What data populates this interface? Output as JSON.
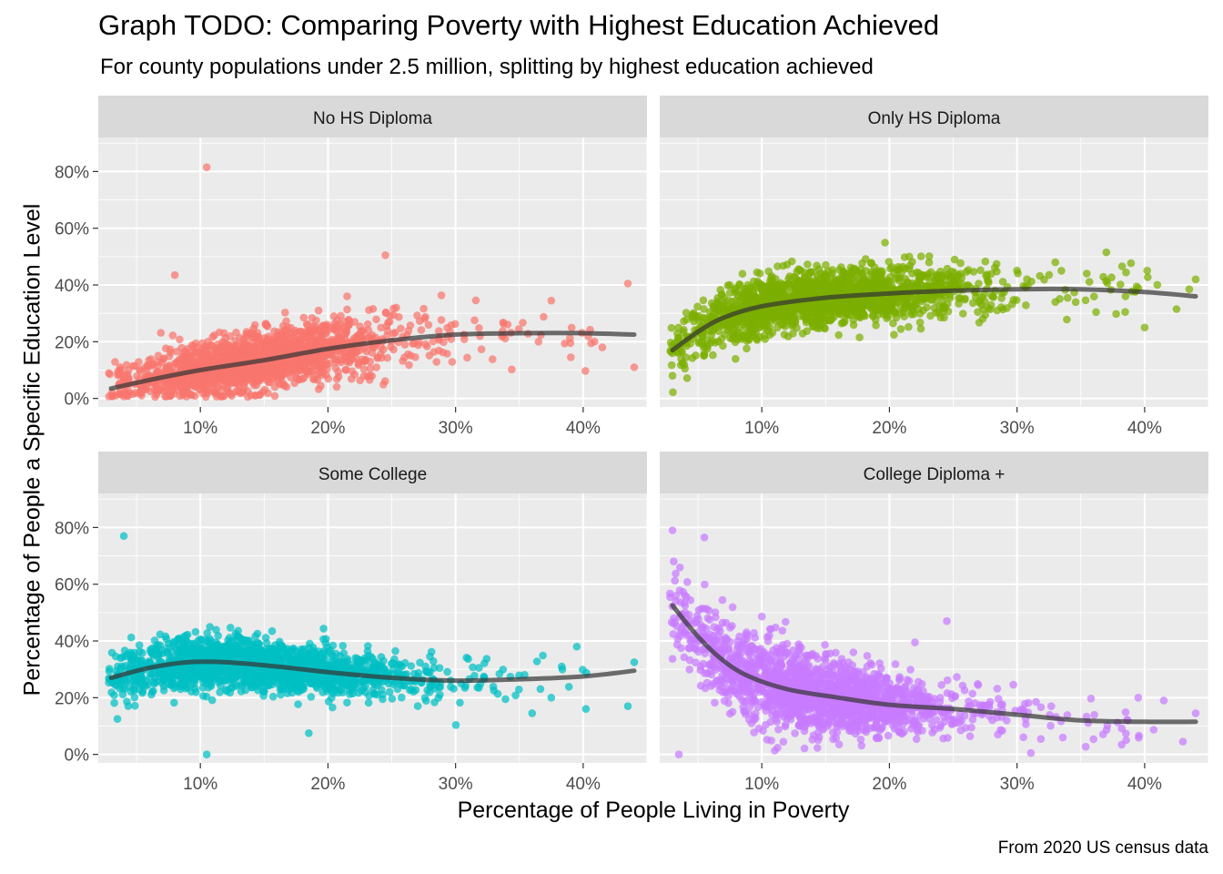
{
  "chart_data": {
    "type": "scatter",
    "title": "Graph TODO: Comparing Poverty with Highest Education Achieved",
    "subtitle": "For county populations under 2.5 million, splitting by highest education achieved",
    "xlabel": "Percentage of People Living in Poverty",
    "ylabel": "Percentage of People a Specific Education Level",
    "caption": "From 2020 US census data",
    "xlim": [
      2,
      45
    ],
    "ylim": [
      -3,
      92
    ],
    "x_ticks": [
      10,
      20,
      30,
      40
    ],
    "x_tick_labels": [
      "10%",
      "20%",
      "30%",
      "40%"
    ],
    "y_ticks": [
      0,
      20,
      40,
      60,
      80
    ],
    "y_tick_labels": [
      "0%",
      "20%",
      "40%",
      "60%",
      "80%"
    ],
    "grid": true,
    "legend": "none",
    "panels": [
      {
        "name": "No HS Diploma",
        "color": "#F8766D",
        "trend": [
          [
            3,
            3.5
          ],
          [
            6,
            6.5
          ],
          [
            10,
            10
          ],
          [
            15,
            13.5
          ],
          [
            20,
            17.5
          ],
          [
            25,
            20.5
          ],
          [
            30,
            22.5
          ],
          [
            35,
            23
          ],
          [
            40,
            23
          ],
          [
            44,
            22.5
          ]
        ],
        "outliers": [
          [
            10.5,
            81.5
          ],
          [
            24.5,
            50.5
          ],
          [
            43.5,
            40.5
          ],
          [
            44,
            11
          ],
          [
            37.5,
            34.5
          ],
          [
            21.5,
            36
          ],
          [
            36.5,
            20
          ],
          [
            39,
            19.5
          ],
          [
            41.5,
            18
          ],
          [
            8,
            43.5
          ]
        ],
        "cloud": {
          "sigma": 4,
          "base": 0,
          "spread_at_10": 6,
          "spread_at_25": 8
        }
      },
      {
        "name": "Only HS Diploma",
        "color": "#7CAE00",
        "trend": [
          [
            3,
            17
          ],
          [
            5,
            23.5
          ],
          [
            7,
            28.5
          ],
          [
            10,
            32.5
          ],
          [
            15,
            35.5
          ],
          [
            20,
            37
          ],
          [
            25,
            38
          ],
          [
            30,
            38.5
          ],
          [
            35,
            38.5
          ],
          [
            40,
            37.5
          ],
          [
            44,
            36
          ]
        ],
        "outliers": [
          [
            3,
            8
          ],
          [
            40,
            25
          ],
          [
            43.5,
            38.5
          ],
          [
            44,
            42
          ],
          [
            37,
            51.5
          ],
          [
            33,
            48
          ],
          [
            42.5,
            31.5
          ],
          [
            38.5,
            36
          ]
        ],
        "cloud": {
          "sigma": 5,
          "spread_at_10": 7,
          "spread_at_25": 6
        }
      },
      {
        "name": "Some College",
        "color": "#00BFC4",
        "trend": [
          [
            3,
            27
          ],
          [
            6,
            30.5
          ],
          [
            9,
            32.5
          ],
          [
            12,
            32.5
          ],
          [
            16,
            31
          ],
          [
            20,
            29
          ],
          [
            25,
            27
          ],
          [
            30,
            26
          ],
          [
            35,
            26.5
          ],
          [
            40,
            27.5
          ],
          [
            44,
            29.5
          ]
        ],
        "outliers": [
          [
            4,
            77
          ],
          [
            10.5,
            0
          ],
          [
            18.5,
            7.5
          ],
          [
            43.5,
            17
          ],
          [
            44,
            32.5
          ],
          [
            39.5,
            38
          ],
          [
            36,
            14.5
          ],
          [
            37.5,
            20
          ],
          [
            3.5,
            12.5
          ]
        ],
        "cloud": {
          "sigma": 5,
          "spread_at_10": 6,
          "spread_at_25": 5
        }
      },
      {
        "name": "College Diploma +",
        "color": "#C77CFF",
        "trend": [
          [
            3,
            52.5
          ],
          [
            5,
            41.5
          ],
          [
            7,
            33
          ],
          [
            9,
            27.5
          ],
          [
            12,
            23
          ],
          [
            16,
            20
          ],
          [
            20,
            17.5
          ],
          [
            25,
            16
          ],
          [
            30,
            14
          ],
          [
            35,
            12
          ],
          [
            40,
            11.5
          ],
          [
            44,
            11.5
          ]
        ],
        "outliers": [
          [
            3,
            79
          ],
          [
            3.5,
            0
          ],
          [
            5.5,
            76.5
          ],
          [
            43,
            4.5
          ],
          [
            44,
            14.5
          ],
          [
            41.5,
            19
          ],
          [
            39.5,
            20
          ],
          [
            24.5,
            47
          ],
          [
            22,
            39.5
          ],
          [
            28.5,
            7
          ]
        ],
        "cloud": {
          "sigma": 4.5,
          "spread_at_10": 10,
          "spread_at_25": 6
        }
      }
    ]
  }
}
